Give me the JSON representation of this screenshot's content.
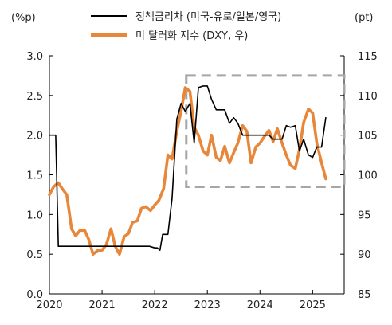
{
  "chart_data": {
    "type": "line",
    "title": "",
    "unit_left": "(%p)",
    "unit_right": "(pt)",
    "x_ticks": [
      "2020",
      "2021",
      "2022",
      "2023",
      "2024",
      "2025"
    ],
    "y_left": {
      "lim": [
        0,
        3
      ],
      "ticks": [
        "0.0",
        "0.5",
        "1.0",
        "1.5",
        "2.0",
        "2.5",
        "3.0"
      ]
    },
    "y_right": {
      "lim": [
        85,
        115
      ],
      "ticks": [
        "85",
        "90",
        "95",
        "100",
        "105",
        "110",
        "115"
      ]
    },
    "legend_placement": "top",
    "highlight_box": {
      "x_range": [
        2022.6,
        2025.6
      ],
      "y_right_range": [
        98.5,
        112.5
      ],
      "style": "dashed",
      "color": "#a6a6a6"
    },
    "series": [
      {
        "name": "정책금리차 (미국-유로/일본/영국)",
        "axis": "left",
        "color": "#000000",
        "x": [
          2020.0,
          2020.08,
          2020.12,
          2020.17,
          2020.25,
          2020.5,
          2020.75,
          2021.0,
          2021.25,
          2021.5,
          2021.75,
          2021.9,
          2022.0,
          2022.05,
          2022.1,
          2022.15,
          2022.25,
          2022.33,
          2022.42,
          2022.5,
          2022.58,
          2022.67,
          2022.75,
          2022.83,
          2022.92,
          2023.0,
          2023.08,
          2023.17,
          2023.25,
          2023.33,
          2023.42,
          2023.5,
          2023.58,
          2023.67,
          2023.75,
          2023.83,
          2023.92,
          2024.0,
          2024.08,
          2024.17,
          2024.25,
          2024.33,
          2024.42,
          2024.5,
          2024.58,
          2024.67,
          2024.75,
          2024.83,
          2024.92,
          2025.0,
          2025.08,
          2025.17,
          2025.25
        ],
        "values": [
          2.0,
          2.0,
          2.0,
          0.6,
          0.6,
          0.6,
          0.6,
          0.6,
          0.6,
          0.6,
          0.6,
          0.6,
          0.58,
          0.58,
          0.55,
          0.75,
          0.75,
          1.2,
          2.2,
          2.4,
          2.3,
          2.4,
          1.9,
          2.6,
          2.62,
          2.62,
          2.45,
          2.32,
          2.32,
          2.32,
          2.15,
          2.22,
          2.15,
          2.0,
          2.0,
          2.0,
          2.0,
          2.0,
          2.0,
          2.0,
          1.95,
          1.95,
          1.95,
          2.12,
          2.1,
          2.12,
          1.8,
          1.95,
          1.75,
          1.72,
          1.85,
          1.85,
          2.22
        ]
      },
      {
        "name": "미 달러화 지수 (DXY, 우)",
        "axis": "right",
        "color": "#e8873a",
        "x": [
          2020.0,
          2020.08,
          2020.17,
          2020.25,
          2020.33,
          2020.42,
          2020.5,
          2020.58,
          2020.67,
          2020.75,
          2020.83,
          2020.92,
          2021.0,
          2021.08,
          2021.17,
          2021.25,
          2021.33,
          2021.42,
          2021.5,
          2021.58,
          2021.67,
          2021.75,
          2021.83,
          2021.92,
          2022.0,
          2022.08,
          2022.17,
          2022.25,
          2022.33,
          2022.42,
          2022.5,
          2022.58,
          2022.67,
          2022.75,
          2022.83,
          2022.92,
          2023.0,
          2023.08,
          2023.17,
          2023.25,
          2023.33,
          2023.42,
          2023.5,
          2023.58,
          2023.67,
          2023.75,
          2023.83,
          2023.92,
          2024.0,
          2024.08,
          2024.17,
          2024.25,
          2024.33,
          2024.42,
          2024.5,
          2024.58,
          2024.67,
          2024.75,
          2024.83,
          2024.92,
          2025.0,
          2025.08,
          2025.17,
          2025.25
        ],
        "values": [
          97.5,
          98.5,
          99.0,
          98.2,
          97.5,
          93.2,
          92.3,
          93.0,
          93.0,
          91.8,
          90.0,
          90.5,
          90.5,
          91.2,
          93.2,
          91.0,
          90.0,
          92.2,
          92.6,
          94.0,
          94.2,
          95.8,
          96.0,
          95.5,
          96.2,
          96.8,
          98.3,
          102.5,
          102.0,
          105.5,
          108.0,
          111.0,
          110.5,
          106.0,
          105.0,
          103.0,
          102.5,
          105.0,
          102.2,
          101.8,
          103.6,
          101.5,
          102.8,
          104.0,
          106.2,
          105.5,
          101.5,
          103.5,
          104.0,
          104.8,
          105.6,
          104.2,
          105.8,
          104.0,
          102.5,
          101.2,
          100.8,
          103.2,
          106.6,
          108.3,
          107.8,
          104.0,
          101.5,
          99.5
        ]
      }
    ]
  }
}
